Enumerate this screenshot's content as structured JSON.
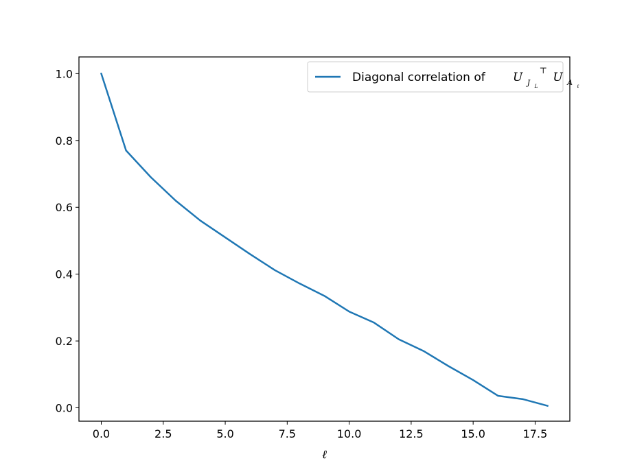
{
  "chart_data": {
    "type": "line",
    "xlabel": "ℓ",
    "ylabel": "",
    "xlim": [
      -0.9,
      18.9
    ],
    "ylim": [
      -0.04,
      1.05
    ],
    "xticks": [
      0.0,
      2.5,
      5.0,
      7.5,
      10.0,
      12.5,
      15.0,
      17.5
    ],
    "xtick_labels": [
      "0.0",
      "2.5",
      "5.0",
      "7.5",
      "10.0",
      "12.5",
      "15.0",
      "17.5"
    ],
    "yticks": [
      0.0,
      0.2,
      0.4,
      0.6,
      0.8,
      1.0
    ],
    "ytick_labels": [
      "0.0",
      "0.2",
      "0.4",
      "0.6",
      "0.8",
      "1.0"
    ],
    "grid": false,
    "legend_position": "top-right",
    "series": [
      {
        "name": "Diagonal correlation of U_{J_L}^⊤ U_{A_ℓ}",
        "legend_text": "Diagonal correlation of",
        "legend_math": {
          "first": "U",
          "first_sub": "J",
          "first_subsub": "L",
          "first_sup": "⊤",
          "second": "U",
          "second_sub": "A",
          "second_subsub": "ℓ"
        },
        "color": "#1f77b4",
        "x": [
          0,
          1,
          2,
          3,
          4,
          5,
          6,
          7,
          8,
          9,
          10,
          11,
          12,
          13,
          14,
          15,
          16,
          17,
          18
        ],
        "y": [
          1.0,
          0.77,
          0.69,
          0.62,
          0.56,
          0.51,
          0.46,
          0.412,
          0.372,
          0.335,
          0.288,
          0.255,
          0.205,
          0.17,
          0.125,
          0.083,
          0.036,
          0.026,
          0.006
        ]
      }
    ]
  }
}
